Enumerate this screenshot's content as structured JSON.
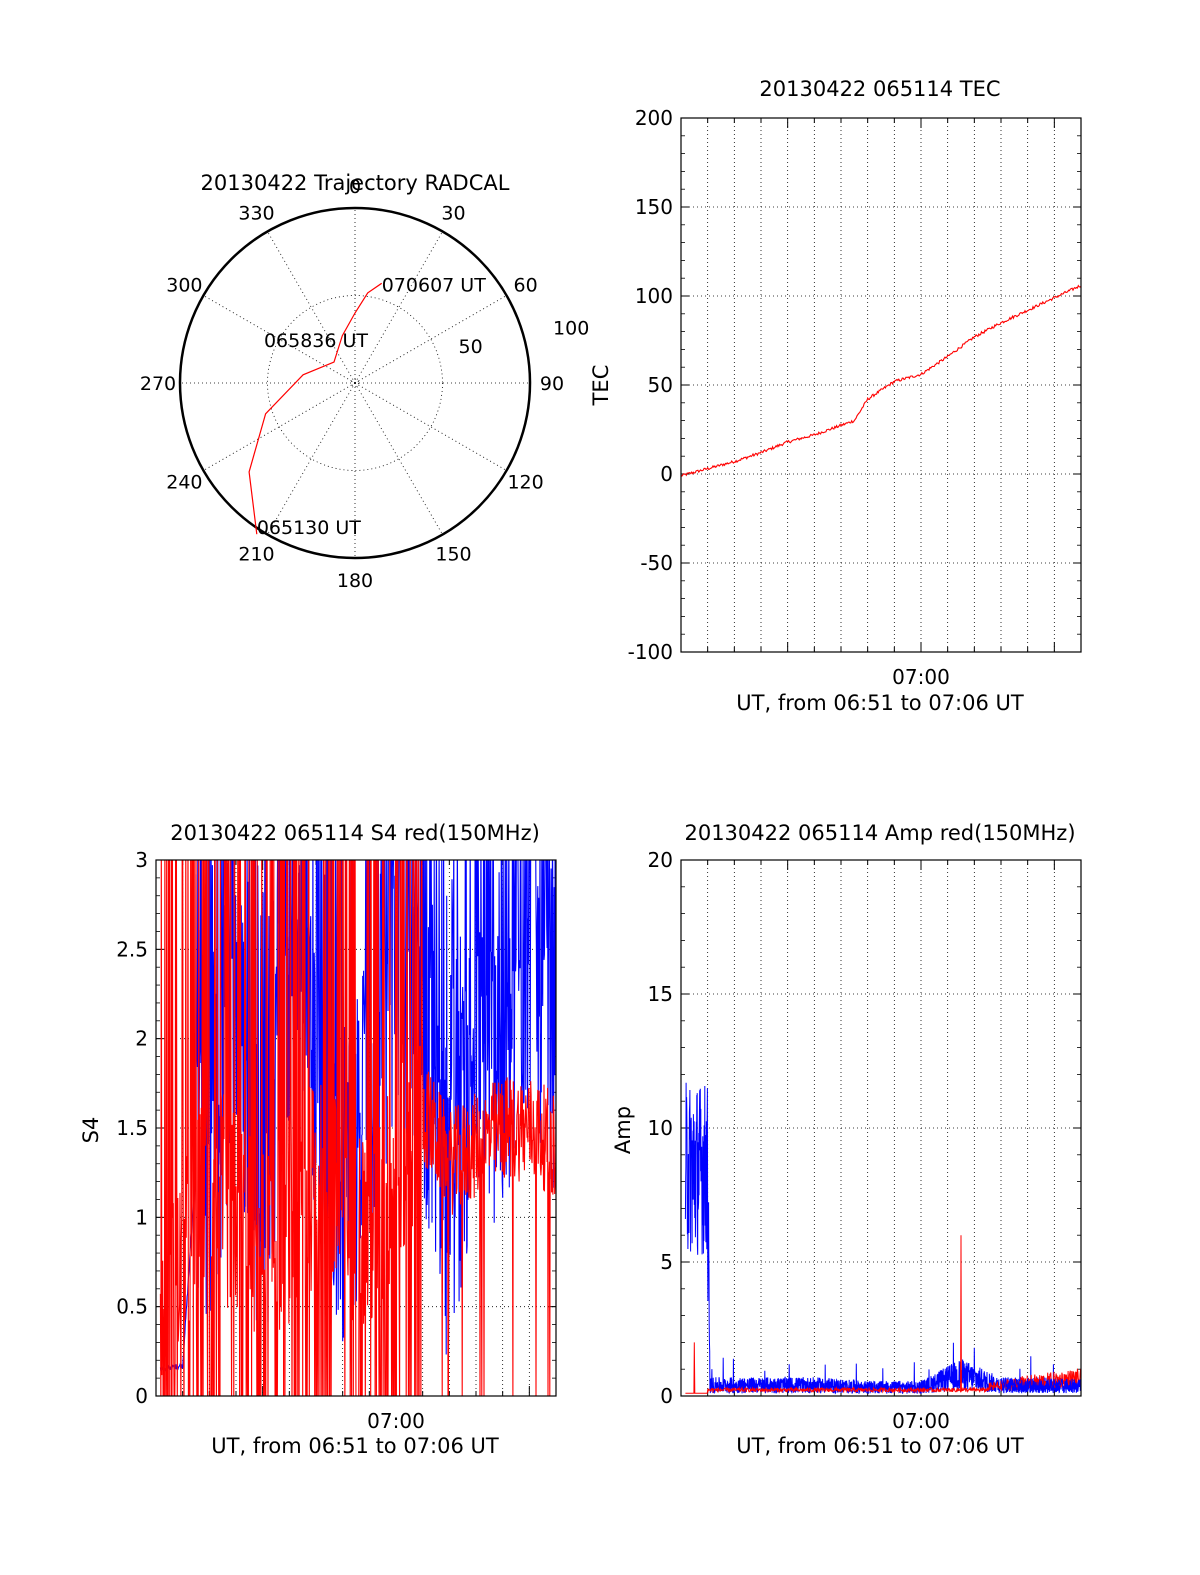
{
  "colors": {
    "red": "#ff0000",
    "blue": "#0000ff",
    "axis": "#000000",
    "background": "#ffffff"
  },
  "chart_data": [
    {
      "id": "trajectory",
      "type": "polar",
      "title": "20130422 Trajectory RADCAL",
      "angle_labels": [
        "0",
        "30",
        "60",
        "90",
        "120",
        "150",
        "180",
        "210",
        "240",
        "270",
        "300",
        "330"
      ],
      "radial_labels": [
        "50",
        "100"
      ],
      "radial_max": 100,
      "path_series": {
        "color": "#ff0000",
        "points": [
          [
            213,
            103
          ],
          [
            230,
            79
          ],
          [
            251,
            54
          ],
          [
            279,
            30
          ],
          [
            315,
            17
          ],
          [
            345,
            28
          ],
          [
            360,
            40
          ],
          [
            8,
            52
          ],
          [
            15,
            59
          ]
        ]
      },
      "annotations": [
        "070607 UT",
        "065836 UT",
        "065130 UT"
      ]
    },
    {
      "id": "tec",
      "type": "line",
      "title": "20130422 065114 TEC",
      "xlabel": "UT, from 06:51 to 07:06 UT",
      "ylabel": "TEC",
      "xlim": [
        "06:51",
        "07:06"
      ],
      "ylim": [
        -100,
        200
      ],
      "yticks": [
        "200",
        "150",
        "100",
        "50",
        "0",
        "-50",
        "-100"
      ],
      "xtick_labels": [
        "07:00"
      ],
      "grid": true,
      "series": [
        {
          "color": "#ff0000",
          "x": [
            "06:51:00",
            "06:52:00",
            "06:53:00",
            "06:54:00",
            "06:55:00",
            "06:56:00",
            "06:57:30",
            "06:58:00",
            "06:59:00",
            "07:00:00",
            "07:01:00",
            "07:02:00",
            "07:03:00",
            "07:04:00",
            "07:05:00",
            "07:06:00"
          ],
          "y": [
            -1,
            3,
            7,
            12,
            18,
            22,
            30,
            42,
            52,
            56,
            66,
            77,
            85,
            92,
            99,
            106
          ]
        }
      ]
    },
    {
      "id": "s4",
      "type": "line",
      "title": "20130422 065114 S4 red(150MHz)",
      "xlabel": "UT, from 06:51 to 07:06 UT",
      "ylabel": "S4",
      "xlim": [
        "06:51",
        "07:06"
      ],
      "ylim": [
        0,
        3
      ],
      "yticks": [
        "3",
        "2.5",
        "2",
        "1.5",
        "1",
        "0.5",
        "0"
      ],
      "xtick_labels": [
        "07:00"
      ],
      "grid": true,
      "series": [
        {
          "color": "#0000ff",
          "x": [
            "06:51:10",
            "06:52:00",
            "06:52:30",
            "06:53:00",
            "06:54:00",
            "06:55:00",
            "06:56:00",
            "06:57:00",
            "06:58:00",
            "06:59:00",
            "07:00:00",
            "07:01:00",
            "07:02:00",
            "07:03:00",
            "07:04:00",
            "07:05:00",
            "07:06:00"
          ],
          "y": [
            0.15,
            0.17,
            1.3,
            1.1,
            2.2,
            1.0,
            2.4,
            1.8,
            1.2,
            1.6,
            2.5,
            2.0,
            1.0,
            2.0,
            1.7,
            2.5,
            2.0
          ]
        },
        {
          "color": "#ff0000",
          "x": [
            "06:51:10",
            "06:53:00",
            "06:55:00",
            "06:57:00",
            "06:59:00",
            "07:01:00",
            "07:02:00",
            "07:03:00",
            "07:04:00",
            "07:05:00",
            "07:06:00"
          ],
          "y": [
            0.3,
            1.2,
            0.8,
            1.2,
            0.9,
            1.6,
            1.3,
            1.4,
            1.5,
            1.5,
            1.4
          ]
        }
      ]
    },
    {
      "id": "amp",
      "type": "line",
      "title": "20130422 065114 Amp red(150MHz)",
      "xlabel": "UT, from 06:51 to 07:06 UT",
      "ylabel": "Amp",
      "xlim": [
        "06:51",
        "07:06"
      ],
      "ylim": [
        0,
        20
      ],
      "yticks": [
        "20",
        "15",
        "10",
        "5",
        "0"
      ],
      "xtick_labels": [
        "07:00"
      ],
      "grid": true,
      "series": [
        {
          "color": "#0000ff",
          "x": [
            "06:51:10",
            "06:52:00",
            "06:52:05",
            "06:54:00",
            "06:56:00",
            "06:58:00",
            "07:00:00",
            "07:01:30",
            "07:03:00",
            "07:06:00"
          ],
          "y": [
            8.5,
            8.5,
            0.5,
            0.5,
            0.5,
            0.4,
            0.4,
            1.0,
            0.5,
            0.5
          ]
        },
        {
          "color": "#ff0000",
          "x": [
            "06:51:10",
            "06:51:30",
            "06:52:00",
            "07:01:30",
            "07:02:00",
            "07:04:00",
            "07:06:00"
          ],
          "y": [
            0.1,
            2.0,
            0.1,
            6.0,
            0.3,
            0.6,
            0.8
          ]
        }
      ]
    }
  ]
}
